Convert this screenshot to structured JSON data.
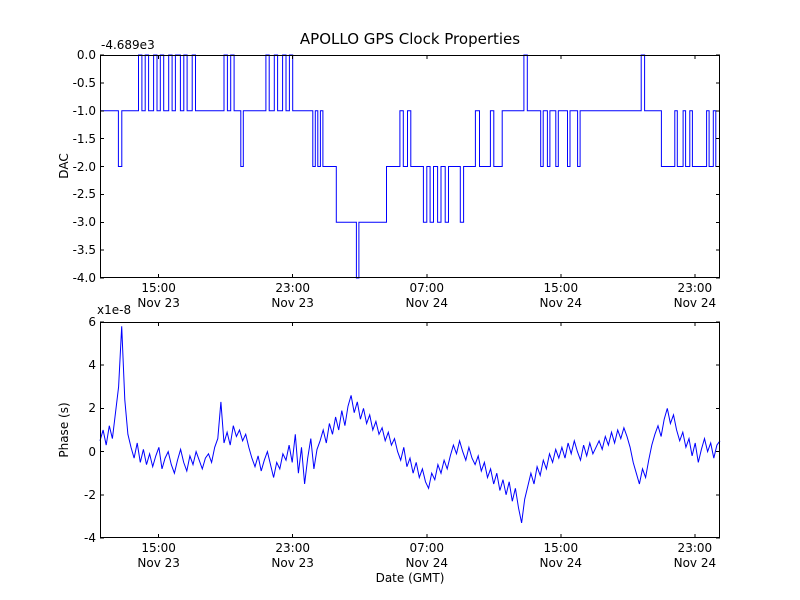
{
  "figure": {
    "background": "#ffffff",
    "line_color": "#0000ff",
    "frame_color": "#000000"
  },
  "chart_data": [
    {
      "name": "dac",
      "type": "line",
      "subtype": "step",
      "title": "APOLLO GPS Clock Properties",
      "ylabel": "DAC",
      "y_offset_text": "-4.689e3",
      "xlim": [
        0,
        37
      ],
      "ylim": [
        -4.0,
        0.0
      ],
      "yticks": [
        0.0,
        -0.5,
        -1.0,
        -1.5,
        -2.0,
        -2.5,
        -3.0,
        -3.5,
        -4.0
      ],
      "ytick_labels": [
        "0.0",
        "-0.5",
        "-1.0",
        "-1.5",
        "-2.0",
        "-2.5",
        "-3.0",
        "-3.5",
        "-4.0"
      ],
      "xticks": [
        3.5,
        11.5,
        19.5,
        27.5,
        35.5
      ],
      "xtick_labels": [
        [
          "15:00",
          "Nov 23"
        ],
        [
          "23:00",
          "Nov 23"
        ],
        [
          "07:00",
          "Nov 24"
        ],
        [
          "15:00",
          "Nov 24"
        ],
        [
          "23:00",
          "Nov 24"
        ]
      ],
      "steps": [
        [
          0,
          -1
        ],
        [
          1.1,
          -2
        ],
        [
          1.3,
          -1
        ],
        [
          2.3,
          0
        ],
        [
          2.5,
          -1
        ],
        [
          2.7,
          0
        ],
        [
          2.9,
          -1
        ],
        [
          3.2,
          0
        ],
        [
          3.4,
          -1
        ],
        [
          3.6,
          0
        ],
        [
          3.8,
          -1
        ],
        [
          4.1,
          0
        ],
        [
          4.3,
          -1
        ],
        [
          4.5,
          0
        ],
        [
          4.8,
          -1
        ],
        [
          5.0,
          0
        ],
        [
          5.2,
          -1
        ],
        [
          5.5,
          0
        ],
        [
          5.7,
          -1
        ],
        [
          7.4,
          0
        ],
        [
          7.6,
          -1
        ],
        [
          7.8,
          0
        ],
        [
          8.0,
          -1
        ],
        [
          8.4,
          -2
        ],
        [
          8.55,
          -1
        ],
        [
          9.9,
          0
        ],
        [
          10.1,
          -1
        ],
        [
          10.4,
          0
        ],
        [
          10.6,
          -1
        ],
        [
          10.9,
          0
        ],
        [
          11.1,
          -1
        ],
        [
          11.3,
          0
        ],
        [
          11.5,
          -1
        ],
        [
          12.7,
          -2
        ],
        [
          12.85,
          -1
        ],
        [
          13.0,
          -2
        ],
        [
          13.15,
          -1
        ],
        [
          13.3,
          -2
        ],
        [
          14.1,
          -3
        ],
        [
          15.3,
          -4
        ],
        [
          15.45,
          -3
        ],
        [
          17.1,
          -2
        ],
        [
          17.9,
          -1
        ],
        [
          18.1,
          -2
        ],
        [
          18.35,
          -1
        ],
        [
          18.55,
          -2
        ],
        [
          19.3,
          -3
        ],
        [
          19.5,
          -2
        ],
        [
          19.7,
          -3
        ],
        [
          19.9,
          -2
        ],
        [
          20.15,
          -3
        ],
        [
          20.35,
          -2
        ],
        [
          20.6,
          -3
        ],
        [
          20.8,
          -2
        ],
        [
          21.5,
          -3
        ],
        [
          21.7,
          -2
        ],
        [
          22.4,
          -1
        ],
        [
          22.65,
          -2
        ],
        [
          23.3,
          -1
        ],
        [
          23.5,
          -2
        ],
        [
          24.0,
          -1
        ],
        [
          25.3,
          0
        ],
        [
          25.5,
          -1
        ],
        [
          26.3,
          -2
        ],
        [
          26.45,
          -1
        ],
        [
          26.7,
          -2
        ],
        [
          26.85,
          -1
        ],
        [
          27.2,
          -2
        ],
        [
          27.35,
          -1
        ],
        [
          27.9,
          -2
        ],
        [
          28.05,
          -1
        ],
        [
          28.5,
          -2
        ],
        [
          28.65,
          -1
        ],
        [
          32.3,
          0
        ],
        [
          32.5,
          -1
        ],
        [
          33.5,
          -2
        ],
        [
          34.3,
          -1
        ],
        [
          34.45,
          -2
        ],
        [
          34.8,
          -1
        ],
        [
          34.95,
          -2
        ],
        [
          35.2,
          -1
        ],
        [
          35.35,
          -2
        ],
        [
          36.2,
          -1
        ],
        [
          36.35,
          -2
        ],
        [
          36.6,
          -1
        ],
        [
          36.75,
          -2
        ]
      ]
    },
    {
      "name": "phase",
      "type": "line",
      "ylabel": "Phase (s)",
      "scale_text": "x1e-8",
      "xlabel": "Date (GMT)",
      "xlim": [
        0,
        37
      ],
      "ylim": [
        -4,
        6
      ],
      "yticks": [
        6,
        4,
        2,
        0,
        -2,
        -4
      ],
      "ytick_labels": [
        "6",
        "4",
        "2",
        "0",
        "-2",
        "-4"
      ],
      "xticks": [
        3.5,
        11.5,
        19.5,
        27.5,
        35.5
      ],
      "xtick_labels": [
        [
          "15:00",
          "Nov 23"
        ],
        [
          "23:00",
          "Nov 23"
        ],
        [
          "07:00",
          "Nov 24"
        ],
        [
          "15:00",
          "Nov 24"
        ],
        [
          "23:00",
          "Nov 24"
        ]
      ],
      "x_step": 0.185,
      "values": [
        0.5,
        1.0,
        0.3,
        1.2,
        0.6,
        1.8,
        3.0,
        5.8,
        2.4,
        0.8,
        0.2,
        -0.3,
        0.4,
        -0.5,
        0.1,
        -0.6,
        -0.1,
        -0.7,
        -0.2,
        0.2,
        -0.8,
        -0.3,
        0.0,
        -0.6,
        -1.0,
        -0.4,
        0.1,
        -0.5,
        -0.9,
        -0.2,
        -0.6,
        0.0,
        -0.4,
        -0.8,
        -0.3,
        -0.1,
        -0.5,
        0.2,
        0.6,
        2.3,
        0.4,
        0.9,
        0.3,
        1.2,
        0.7,
        1.0,
        0.5,
        0.8,
        0.2,
        -0.3,
        -0.7,
        -0.2,
        -0.9,
        -0.4,
        0.0,
        -0.6,
        -1.2,
        -0.5,
        -0.8,
        -0.1,
        -0.4,
        0.3,
        -0.5,
        0.8,
        -1.0,
        0.2,
        -1.5,
        -0.3,
        0.6,
        -0.8,
        0.1,
        0.5,
        1.0,
        0.4,
        1.3,
        0.8,
        1.6,
        1.0,
        1.9,
        1.2,
        2.1,
        2.6,
        1.8,
        2.3,
        1.5,
        2.0,
        1.3,
        1.7,
        1.0,
        1.4,
        0.8,
        1.1,
        0.5,
        0.9,
        0.3,
        0.6,
        0.0,
        -0.4,
        0.2,
        -0.7,
        -0.3,
        -1.0,
        -0.5,
        -1.2,
        -0.8,
        -1.4,
        -1.7,
        -1.0,
        -1.3,
        -0.6,
        -1.0,
        -0.4,
        -0.8,
        -0.2,
        0.3,
        -0.1,
        0.5,
        0.0,
        -0.4,
        0.2,
        -0.3,
        -0.6,
        -0.2,
        -0.9,
        -0.5,
        -1.2,
        -0.8,
        -1.5,
        -1.0,
        -1.8,
        -1.3,
        -2.0,
        -1.4,
        -2.3,
        -1.7,
        -2.6,
        -3.3,
        -2.2,
        -1.6,
        -1.0,
        -1.5,
        -0.7,
        -1.1,
        -0.4,
        -0.8,
        -0.1,
        -0.5,
        0.1,
        -0.3,
        0.2,
        -0.3,
        0.4,
        -0.1,
        0.5,
        0.0,
        -0.4,
        0.3,
        -0.2,
        0.4,
        -0.1,
        0.2,
        0.5,
        0.1,
        0.7,
        0.3,
        0.9,
        0.4,
        1.0,
        0.6,
        1.1,
        0.7,
        0.2,
        -0.5,
        -1.0,
        -1.5,
        -0.8,
        -1.2,
        -0.4,
        0.3,
        0.8,
        1.2,
        0.7,
        1.5,
        2.0,
        1.3,
        1.7,
        1.0,
        0.5,
        0.9,
        0.2,
        0.6,
        -0.2,
        0.4,
        -0.5,
        0.1,
        0.6,
        0.0,
        0.4,
        -0.3,
        0.3,
        0.5
      ]
    }
  ]
}
